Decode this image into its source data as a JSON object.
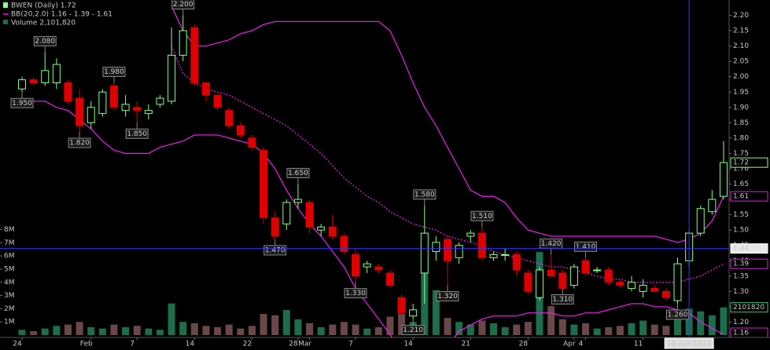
{
  "chart_data": {
    "type": "candlestick",
    "title": "BWEN (Daily) 1.72",
    "categories": [
      "24",
      null,
      null,
      null,
      null,
      null,
      "Feb",
      null,
      null,
      null,
      "7",
      null,
      null,
      null,
      null,
      "14",
      null,
      null,
      null,
      null,
      "22",
      null,
      null,
      null,
      "28",
      "Mar",
      null,
      null,
      null,
      "7",
      null,
      null,
      null,
      null,
      "14",
      null,
      null,
      null,
      null,
      "21",
      null,
      null,
      null,
      null,
      "28",
      null,
      null,
      null,
      "Apr",
      "4",
      null,
      null,
      null,
      null,
      "11",
      null,
      null,
      null,
      null,
      null,
      null,
      null
    ],
    "open": [
      1.96,
      1.99,
      1.98,
      1.98,
      1.98,
      1.93,
      1.85,
      1.88,
      1.97,
      1.89,
      1.9,
      1.88,
      1.91,
      1.92,
      2.07,
      2.16,
      1.98,
      1.94,
      1.89,
      1.84,
      1.8,
      1.76,
      1.54,
      1.52,
      1.59,
      1.59,
      1.5,
      1.51,
      1.48,
      1.42,
      1.38,
      1.38,
      1.36,
      1.28,
      1.22,
      1.36,
      1.43,
      1.47,
      1.41,
      1.48,
      1.49,
      1.41,
      1.42,
      1.42,
      1.36,
      1.28,
      1.37,
      1.36,
      1.32,
      1.4,
      1.37,
      1.37,
      1.33,
      1.31,
      1.3,
      1.31,
      1.3,
      1.27,
      1.4,
      1.49,
      1.56,
      1.61
    ],
    "high": [
      2.0,
      2.0,
      2.08,
      2.06,
      1.99,
      1.96,
      1.92,
      1.96,
      1.98,
      1.94,
      1.92,
      1.91,
      1.94,
      2.16,
      2.2,
      2.17,
      1.98,
      1.94,
      1.9,
      1.85,
      1.81,
      1.77,
      1.56,
      1.6,
      1.65,
      1.6,
      1.52,
      1.55,
      1.49,
      1.44,
      1.4,
      1.39,
      1.37,
      1.29,
      1.26,
      1.58,
      1.48,
      1.48,
      1.46,
      1.5,
      1.51,
      1.43,
      1.44,
      1.43,
      1.37,
      1.38,
      1.42,
      1.37,
      1.39,
      1.41,
      1.38,
      1.38,
      1.34,
      1.35,
      1.34,
      1.32,
      1.31,
      1.41,
      1.5,
      1.58,
      1.63,
      1.79
    ],
    "low": [
      1.95,
      1.97,
      1.97,
      1.96,
      1.91,
      1.82,
      1.83,
      1.87,
      1.89,
      1.87,
      1.85,
      1.86,
      1.9,
      1.91,
      2.05,
      1.97,
      1.92,
      1.89,
      1.83,
      1.8,
      1.76,
      1.52,
      1.47,
      1.5,
      1.57,
      1.49,
      1.48,
      1.47,
      1.42,
      1.33,
      1.36,
      1.36,
      1.31,
      1.22,
      1.21,
      1.26,
      1.4,
      1.32,
      1.39,
      1.46,
      1.4,
      1.4,
      1.4,
      1.35,
      1.29,
      1.27,
      1.35,
      1.31,
      1.31,
      1.35,
      1.36,
      1.32,
      1.31,
      1.3,
      1.28,
      1.3,
      1.27,
      1.26,
      1.38,
      1.48,
      1.55,
      1.6
    ],
    "close": [
      1.99,
      1.98,
      2.02,
      2.04,
      1.92,
      1.84,
      1.9,
      1.95,
      1.9,
      1.91,
      1.89,
      1.89,
      1.93,
      2.07,
      2.15,
      1.98,
      1.94,
      1.9,
      1.84,
      1.81,
      1.77,
      1.54,
      1.48,
      1.59,
      1.6,
      1.51,
      1.51,
      1.48,
      1.43,
      1.35,
      1.39,
      1.37,
      1.32,
      1.23,
      1.24,
      1.49,
      1.46,
      1.4,
      1.45,
      1.49,
      1.41,
      1.42,
      1.42,
      1.37,
      1.3,
      1.37,
      1.35,
      1.31,
      1.38,
      1.36,
      1.37,
      1.33,
      1.32,
      1.33,
      1.32,
      1.3,
      1.28,
      1.39,
      1.49,
      1.57,
      1.6,
      1.72
    ],
    "high_labels": [
      null,
      null,
      "2.080",
      null,
      null,
      null,
      null,
      null,
      "1.980",
      null,
      null,
      null,
      null,
      null,
      "2.200",
      null,
      null,
      null,
      null,
      null,
      null,
      null,
      null,
      null,
      "1.650",
      null,
      null,
      null,
      null,
      null,
      null,
      null,
      null,
      null,
      null,
      "1.580",
      null,
      null,
      null,
      null,
      "1.510",
      null,
      null,
      null,
      null,
      null,
      "1.420",
      null,
      null,
      "1.410",
      null,
      null,
      null,
      null,
      null,
      null,
      null,
      null,
      null,
      null,
      null,
      null
    ],
    "low_labels": [
      "1.950",
      null,
      null,
      null,
      null,
      "1.820",
      null,
      null,
      null,
      null,
      "1.850",
      null,
      null,
      null,
      null,
      null,
      null,
      null,
      null,
      null,
      null,
      null,
      "1.470",
      null,
      null,
      null,
      null,
      null,
      null,
      "1.330",
      null,
      null,
      null,
      null,
      "1.210",
      null,
      null,
      "1.320",
      null,
      null,
      null,
      null,
      null,
      null,
      null,
      null,
      null,
      "1.310",
      null,
      null,
      null,
      null,
      null,
      null,
      null,
      null,
      null,
      "1.260",
      null,
      null,
      null,
      null
    ],
    "up_color": "#8cff8c",
    "down_color": "#e00000",
    "ylim": [
      1.15,
      2.25
    ],
    "yticks": [
      {
        "value": 1.2,
        "label": "1.20"
      },
      1.25,
      {
        "value": 1.3,
        "label": "1.30"
      },
      1.35,
      {
        "value": 1.4,
        "label": "1.40"
      },
      1.45,
      {
        "value": 1.5,
        "label": "1.50"
      },
      1.55,
      {
        "value": 1.6,
        "label": "1.60"
      },
      1.65,
      {
        "value": 1.7,
        "label": "1.70"
      },
      1.75,
      {
        "value": 1.8,
        "label": "1.80"
      },
      1.85,
      {
        "value": 1.9,
        "label": "1.90"
      },
      1.95,
      {
        "value": 2.0,
        "label": "2.00"
      },
      2.05,
      {
        "value": 2.1,
        "label": "2.10"
      },
      2.15,
      {
        "value": 2.2,
        "label": "2.20"
      }
    ],
    "bands": {
      "name": "BB(20,2.0) 1.16 - 1.39 - 1.61",
      "color": "#e020e0",
      "upper": [
        null,
        null,
        null,
        null,
        null,
        null,
        null,
        null,
        null,
        null,
        null,
        null,
        null,
        2.23,
        2.15,
        2.1,
        2.1,
        2.11,
        2.12,
        2.14,
        2.15,
        2.17,
        2.18,
        2.18,
        2.18,
        2.18,
        2.18,
        2.18,
        2.18,
        2.18,
        2.18,
        2.18,
        2.15,
        2.07,
        1.98,
        1.9,
        1.84,
        1.77,
        1.7,
        1.63,
        1.61,
        1.61,
        1.59,
        1.54,
        1.5,
        1.49,
        1.48,
        1.48,
        1.48,
        1.48,
        1.48,
        1.48,
        1.48,
        1.48,
        1.48,
        1.48,
        1.47,
        1.46,
        1.47,
        1.49,
        1.53,
        1.61
      ],
      "middle": [
        null,
        null,
        null,
        null,
        null,
        null,
        null,
        null,
        null,
        null,
        null,
        null,
        null,
        2.1,
        2.01,
        1.98,
        1.96,
        1.95,
        1.94,
        1.92,
        1.9,
        1.88,
        1.86,
        1.84,
        1.81,
        1.78,
        1.75,
        1.71,
        1.67,
        1.64,
        1.61,
        1.59,
        1.56,
        1.54,
        1.52,
        1.51,
        1.5,
        1.48,
        1.47,
        1.46,
        1.45,
        1.43,
        1.42,
        1.41,
        1.4,
        1.39,
        1.38,
        1.38,
        1.37,
        1.36,
        1.35,
        1.34,
        1.34,
        1.33,
        1.33,
        1.33,
        1.33,
        1.33,
        1.34,
        1.35,
        1.37,
        1.39
      ],
      "lower": [
        1.93,
        1.92,
        1.92,
        1.9,
        1.89,
        1.86,
        1.83,
        1.79,
        1.76,
        1.75,
        1.75,
        1.75,
        1.77,
        1.78,
        1.79,
        1.81,
        1.81,
        1.81,
        1.8,
        1.79,
        1.78,
        1.75,
        1.7,
        1.63,
        1.57,
        1.52,
        1.48,
        1.43,
        1.38,
        1.31,
        1.26,
        1.21,
        1.16,
        1.1,
        1.07,
        1.06,
        1.08,
        1.12,
        1.17,
        1.19,
        1.21,
        1.22,
        1.22,
        1.22,
        1.23,
        1.23,
        1.23,
        1.22,
        1.22,
        1.23,
        1.23,
        1.24,
        1.25,
        1.26,
        1.26,
        1.25,
        1.25,
        1.24,
        1.23,
        1.2,
        1.18,
        1.16
      ]
    },
    "volume": {
      "name": "Volume 2,101,820",
      "up_color": "#1c6e4c",
      "down_color": "#6a4848",
      "values": [
        0.4,
        0.3,
        0.5,
        0.7,
        0.8,
        1.0,
        0.6,
        0.5,
        0.8,
        0.6,
        0.7,
        0.5,
        0.4,
        2.4,
        1.0,
        0.9,
        0.7,
        0.6,
        0.8,
        0.5,
        0.7,
        1.6,
        1.5,
        1.9,
        1.2,
        0.9,
        0.6,
        0.8,
        1.0,
        0.8,
        0.5,
        0.6,
        1.4,
        1.6,
        1.0,
        5.6,
        3.4,
        1.3,
        1.0,
        0.8,
        1.1,
        0.9,
        0.6,
        0.8,
        1.0,
        6.3,
        2.2,
        1.2,
        0.8,
        0.9,
        0.5,
        0.6,
        0.7,
        0.9,
        1.1,
        0.8,
        0.7,
        1.9,
        2.0,
        1.8,
        1.5,
        2.10182
      ],
      "last_label": "2101820",
      "ylim": [
        0,
        25.4
      ],
      "yticks": [
        {
          "value": 1,
          "label": "1M"
        },
        {
          "value": 2,
          "label": "2M"
        },
        {
          "value": 3,
          "label": "3M"
        },
        {
          "value": 4,
          "label": "4M"
        },
        {
          "value": 5,
          "label": "5M"
        },
        {
          "value": 6,
          "label": "6M"
        },
        {
          "value": 7,
          "label": "7M"
        },
        {
          "value": 8,
          "label": "8M"
        }
      ]
    },
    "crosshair": {
      "value": 1.44,
      "date": "18 Apr 2011",
      "color": "#3333ff"
    }
  }
}
